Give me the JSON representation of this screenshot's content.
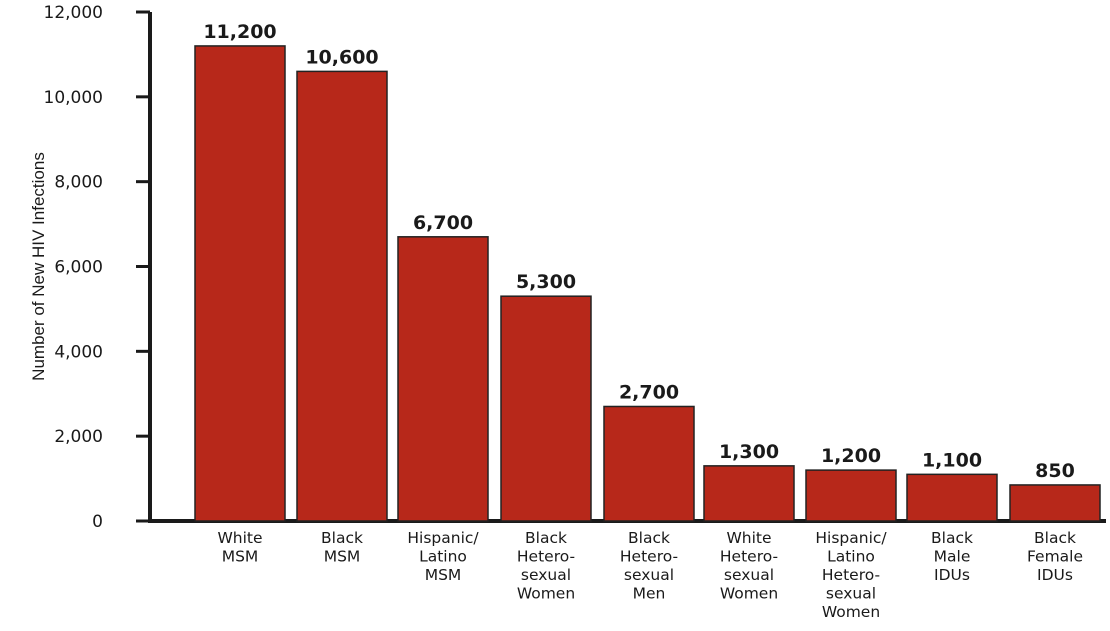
{
  "chart_data": {
    "type": "bar",
    "title": "",
    "xlabel": "",
    "ylabel": "Number of New HIV Infections",
    "ylim": [
      0,
      12000
    ],
    "yticks": [
      0,
      2000,
      4000,
      6000,
      8000,
      10000,
      12000
    ],
    "ytick_labels": [
      "0",
      "2,000",
      "4,000",
      "6,000",
      "8,000",
      "10,000",
      "12,000"
    ],
    "bar_color": "#b7281a",
    "grid": false,
    "categories": [
      [
        "White",
        "MSM"
      ],
      [
        "Black",
        "MSM"
      ],
      [
        "Hispanic/",
        "Latino",
        "MSM"
      ],
      [
        "Black",
        "Hetero-",
        "sexual",
        "Women"
      ],
      [
        "Black",
        "Hetero-",
        "sexual",
        "Men"
      ],
      [
        "White",
        "Hetero-",
        "sexual",
        "Women"
      ],
      [
        "Hispanic/",
        "Latino",
        "Hetero-",
        "sexual",
        "Women"
      ],
      [
        "Black",
        "Male",
        "IDUs"
      ],
      [
        "Black",
        "Female",
        "IDUs"
      ]
    ],
    "values": [
      11200,
      10600,
      6700,
      5300,
      2700,
      1300,
      1200,
      1100,
      850
    ],
    "value_labels": [
      "11,200",
      "10,600",
      "6,700",
      "5,300",
      "2,700",
      "1,300",
      "1,200",
      "1,100",
      "850"
    ]
  }
}
